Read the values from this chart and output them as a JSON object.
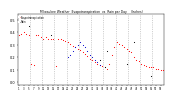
{
  "title": "Milwaukee Weather  Evapotranspiration  vs  Rain per Day    (Inches)",
  "legend_et": "Evapotranspiration",
  "legend_rain": "Rain",
  "background": "#ffffff",
  "et_color": "#ff0000",
  "rain_color": "#000000",
  "blue_color": "#0000cc",
  "ylim": [
    -0.02,
    0.55
  ],
  "yticks": [
    0.0,
    0.1,
    0.2,
    0.3,
    0.4,
    0.5
  ],
  "et_values": [
    0.38,
    0.39,
    0.4,
    0.39,
    0.38,
    0.15,
    0.14,
    0.38,
    0.38,
    0.36,
    0.35,
    0.36,
    0.35,
    0.35,
    0.35,
    0.13,
    0.35,
    0.35,
    0.34,
    0.33,
    0.32,
    0.31,
    0.29,
    0.28,
    0.27,
    0.26,
    0.24,
    0.23,
    0.21,
    0.19,
    0.18,
    0.16,
    0.15,
    0.14,
    0.13,
    0.12,
    0.11,
    0.15,
    0.22,
    0.28,
    0.32,
    0.31,
    0.3,
    0.28,
    0.27,
    0.25,
    0.24,
    0.2,
    0.18,
    0.17,
    0.15,
    0.14,
    0.13,
    0.12,
    0.12,
    0.12,
    0.11,
    0.11,
    0.1,
    0.1
  ],
  "rain_values": [
    0.0,
    0.0,
    0.0,
    0.0,
    0.45,
    0.0,
    0.0,
    0.0,
    0.0,
    0.0,
    0.0,
    0.0,
    0.0,
    0.38,
    0.0,
    0.0,
    0.0,
    0.0,
    0.0,
    0.0,
    0.0,
    0.0,
    0.0,
    0.0,
    0.0,
    0.0,
    0.0,
    0.0,
    0.0,
    0.0,
    0.0,
    0.0,
    0.0,
    0.18,
    0.0,
    0.12,
    0.25,
    0.0,
    0.0,
    0.0,
    0.0,
    0.0,
    0.0,
    0.0,
    0.15,
    0.0,
    0.0,
    0.32,
    0.0,
    0.0,
    0.0,
    0.0,
    0.0,
    0.0,
    0.05,
    0.0,
    0.0,
    0.0,
    0.0,
    0.0
  ],
  "blue_values": [
    null,
    null,
    null,
    null,
    null,
    null,
    null,
    null,
    null,
    null,
    null,
    null,
    null,
    null,
    null,
    null,
    null,
    null,
    null,
    null,
    0.2,
    0.22,
    0.25,
    0.28,
    0.3,
    0.32,
    0.3,
    0.28,
    0.25,
    0.22,
    0.2,
    0.18,
    0.16,
    0.14,
    null,
    null,
    null,
    null,
    null,
    null,
    null,
    null,
    null,
    null,
    null,
    null,
    null,
    null,
    null,
    null,
    null,
    null,
    null,
    null,
    null,
    null,
    null,
    null,
    null,
    null
  ],
  "n_points": 60,
  "vlines_x": [
    6,
    11,
    16,
    21,
    26,
    31,
    36,
    41,
    46,
    51,
    56
  ],
  "xlim": [
    0.5,
    60.5
  ]
}
